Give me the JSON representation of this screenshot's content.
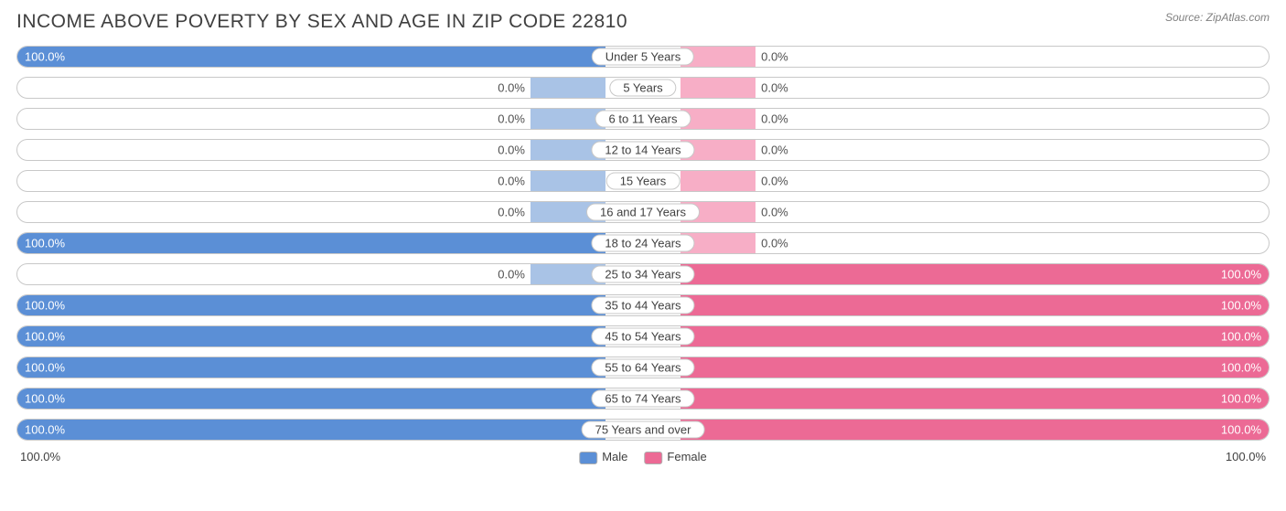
{
  "title": "INCOME ABOVE POVERTY BY SEX AND AGE IN ZIP CODE 22810",
  "source": "Source: ZipAtlas.com",
  "chart": {
    "type": "diverging-bar",
    "male_color": "#5b8fd6",
    "female_color": "#ec6a95",
    "male_min_color": "#a9c3e6",
    "female_min_color": "#f7aec6",
    "border_color": "#c8c8c8",
    "background": "#ffffff",
    "min_bar_pct": 6,
    "center_gap_pct": 11,
    "rows": [
      {
        "age": "Under 5 Years",
        "male": 100.0,
        "female": 0.0
      },
      {
        "age": "5 Years",
        "male": 0.0,
        "female": 0.0
      },
      {
        "age": "6 to 11 Years",
        "male": 0.0,
        "female": 0.0
      },
      {
        "age": "12 to 14 Years",
        "male": 0.0,
        "female": 0.0
      },
      {
        "age": "15 Years",
        "male": 0.0,
        "female": 0.0
      },
      {
        "age": "16 and 17 Years",
        "male": 0.0,
        "female": 0.0
      },
      {
        "age": "18 to 24 Years",
        "male": 100.0,
        "female": 0.0
      },
      {
        "age": "25 to 34 Years",
        "male": 0.0,
        "female": 100.0
      },
      {
        "age": "35 to 44 Years",
        "male": 100.0,
        "female": 100.0
      },
      {
        "age": "45 to 54 Years",
        "male": 100.0,
        "female": 100.0
      },
      {
        "age": "55 to 64 Years",
        "male": 100.0,
        "female": 100.0
      },
      {
        "age": "65 to 74 Years",
        "male": 100.0,
        "female": 100.0
      },
      {
        "age": "75 Years and over",
        "male": 100.0,
        "female": 100.0
      }
    ],
    "axis": {
      "left": "100.0%",
      "right": "100.0%"
    },
    "legend": {
      "male": "Male",
      "female": "Female"
    }
  }
}
